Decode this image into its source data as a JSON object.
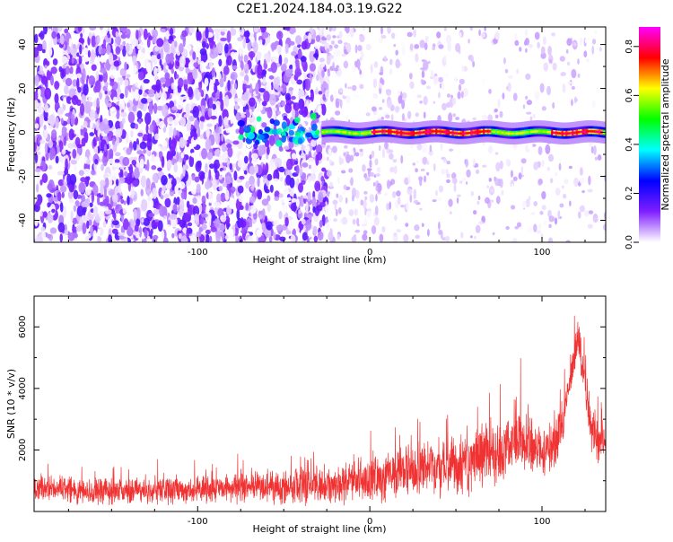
{
  "title": "C2E1.2024.184.03.19.G22",
  "chart_data": [
    {
      "type": "heatmap",
      "title": "",
      "xlabel": "Height of straight line (km)",
      "ylabel": "Frequency (Hz)",
      "xlim": [
        -195,
        137
      ],
      "ylim": [
        -50,
        48
      ],
      "x_ticks": [
        -100,
        0,
        100
      ],
      "y_ticks": [
        -40,
        -20,
        0,
        20,
        40
      ],
      "colorbar": {
        "label": "Normalized spectral amplitude",
        "range": [
          0,
          0.88
        ],
        "ticks": [
          0.0,
          0.2,
          0.4,
          0.6,
          0.8
        ],
        "colors": [
          "#ffffff",
          "#7f1fff",
          "#0000ff",
          "#00ffff",
          "#00ff00",
          "#ffff00",
          "#ff0000",
          "#ff00ff"
        ]
      },
      "features": {
        "noise_region_x": [
          -195,
          -25
        ],
        "sparse_region_x": [
          -25,
          137
        ],
        "signal_band_frequency": 0,
        "signal_band_start_x": -28,
        "peak_cluster_x": [
          -75,
          -30
        ],
        "high_amplitude_segments_x": [
          [
            0,
            70
          ],
          [
            105,
            135
          ]
        ]
      }
    },
    {
      "type": "line",
      "title": "",
      "xlabel": "Height of straight line (km)",
      "ylabel": "SNR (10 * v/v)",
      "xlim": [
        -195,
        137
      ],
      "ylim": [
        0,
        7000
      ],
      "x_ticks": [
        -100,
        0,
        100
      ],
      "y_ticks": [
        2000,
        4000,
        6000
      ],
      "series_color": "#f03232",
      "trend": {
        "x": [
          -195,
          -150,
          -100,
          -50,
          -25,
          0,
          25,
          50,
          75,
          85,
          95,
          105,
          112,
          118,
          121,
          124,
          128,
          133,
          137
        ],
        "y_mean": [
          750,
          650,
          700,
          800,
          900,
          1050,
          1300,
          1500,
          1900,
          2400,
          2200,
          1900,
          2900,
          4800,
          5600,
          4600,
          2800,
          2300,
          2600
        ],
        "y_spread": [
          550,
          500,
          550,
          650,
          750,
          900,
          1050,
          1150,
          1300,
          1400,
          1200,
          1000,
          900,
          800,
          700,
          800,
          900,
          900,
          900
        ]
      }
    }
  ]
}
